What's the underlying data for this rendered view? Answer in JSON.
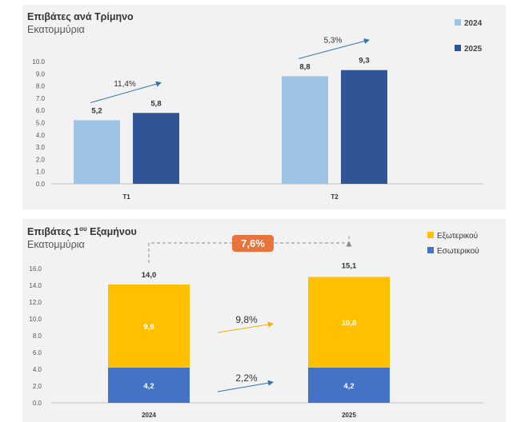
{
  "colors": {
    "c2024": "#9dc3e6",
    "c2025": "#2f5597",
    "external": "#ffc000",
    "domestic": "#4472c4",
    "badge": "#e8743b",
    "arrow_blue": "#2e75b6",
    "arrow_yellow": "#f2b200",
    "axis": "#bfbfbf"
  },
  "chart_data": [
    {
      "type": "bar",
      "title": "Επιβάτες ανά Τρίμηνο",
      "subtitle": "Εκατομμύρια",
      "categories": [
        "T1",
        "T2"
      ],
      "series": [
        {
          "name": "2024",
          "values": [
            5.2,
            8.8
          ],
          "labels": [
            "5,2",
            "8,8"
          ]
        },
        {
          "name": "2025",
          "values": [
            5.8,
            9.3
          ],
          "labels": [
            "5,8",
            "9,3"
          ]
        }
      ],
      "growth_labels": [
        "11,4%",
        "5,3%"
      ],
      "ylim": [
        0,
        10
      ],
      "yticks": [
        0,
        1,
        2,
        3,
        4,
        5,
        6,
        7,
        8,
        9,
        10
      ],
      "ytick_labels": [
        "0.0",
        "1.0",
        "2.0",
        "3.0",
        "4.0",
        "5.0",
        "6.0",
        "7.0",
        "8.0",
        "9.0",
        "10.0"
      ],
      "legend": [
        "2024",
        "2025"
      ],
      "legend_position": "top-right"
    },
    {
      "type": "stacked-bar",
      "title_main": "Επιβάτες 1",
      "title_sup": "ου",
      "title_end": " Εξαμήνου",
      "subtitle": "Εκατομμύρια",
      "categories": [
        "2024",
        "2025"
      ],
      "series": [
        {
          "name": "Εσωτερικού",
          "values": [
            4.2,
            4.2
          ],
          "labels": [
            "4,2",
            "4,2"
          ]
        },
        {
          "name": "Εξωτερικού",
          "values": [
            9.9,
            10.8
          ],
          "labels": [
            "9,9",
            "10,8"
          ]
        }
      ],
      "totals": [
        14.0,
        15.1
      ],
      "total_labels": [
        "14,0",
        "15,1"
      ],
      "growth": {
        "external": "9,8%",
        "domestic": "2,2%",
        "total": "7,6%"
      },
      "ylim": [
        0,
        16
      ],
      "yticks": [
        0,
        2,
        4,
        6,
        8,
        10,
        12,
        14,
        16
      ],
      "ytick_labels": [
        "0.0",
        "2.0",
        "4.0",
        "6.0",
        "8.0",
        "10.0",
        "12.0",
        "14.0",
        "16.0"
      ],
      "legend": [
        "Εξωτερικού",
        "Εσωτερικού"
      ],
      "legend_position": "top-right"
    }
  ]
}
